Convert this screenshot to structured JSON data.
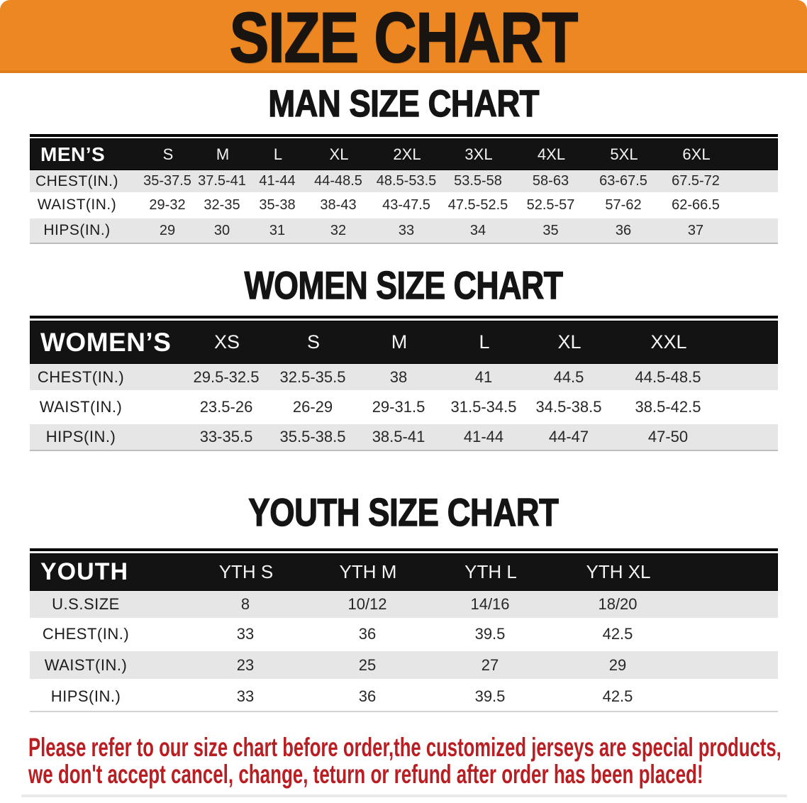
{
  "banner": {
    "title": "SIZE CHART"
  },
  "sections": {
    "men": {
      "heading": "MAN SIZE CHART",
      "table": {
        "header": [
          "MEN’S",
          "S",
          "M",
          "L",
          "XL",
          "2XL",
          "3XL",
          "4XL",
          "5XL",
          "6XL"
        ],
        "rows": [
          {
            "label": "CHEST(IN.)",
            "values": [
              "35-37.5",
              "37.5-41",
              "41-44",
              "44-48.5",
              "48.5-53.5",
              "53.5-58",
              "58-63",
              "63-67.5",
              "67.5-72"
            ]
          },
          {
            "label": "WAIST(IN.)",
            "values": [
              "29-32",
              "32-35",
              "35-38",
              "38-43",
              "43-47.5",
              "47.5-52.5",
              "52.5-57",
              "57-62",
              "62-66.5"
            ]
          },
          {
            "label": "HIPS(IN.)",
            "values": [
              "29",
              "30",
              "31",
              "32",
              "33",
              "34",
              "35",
              "36",
              "37"
            ]
          }
        ]
      }
    },
    "women": {
      "heading": "WOMEN SIZE CHART",
      "table": {
        "header": [
          "WOMEN’S",
          "XS",
          "S",
          "M",
          "L",
          "XL",
          "XXL"
        ],
        "rows": [
          {
            "label": "CHEST(IN.)",
            "values": [
              "29.5-32.5",
              "32.5-35.5",
              "38",
              "41",
              "44.5",
              "44.5-48.5"
            ]
          },
          {
            "label": "WAIST(IN.)",
            "values": [
              "23.5-26",
              "26-29",
              "29-31.5",
              "31.5-34.5",
              "34.5-38.5",
              "38.5-42.5"
            ]
          },
          {
            "label": "HIPS(IN.)",
            "values": [
              "33-35.5",
              "35.5-38.5",
              "38.5-41",
              "41-44",
              "44-47",
              "47-50"
            ]
          }
        ]
      }
    },
    "youth": {
      "heading": "YOUTH SIZE CHART",
      "table": {
        "header": [
          "YOUTH",
          "YTH S",
          "YTH M",
          "YTH L",
          "YTH XL"
        ],
        "rows": [
          {
            "label": "U.S.SIZE",
            "values": [
              "8",
              "10/12",
              "14/16",
              "18/20"
            ]
          },
          {
            "label": "CHEST(IN.)",
            "values": [
              "33",
              "36",
              "39.5",
              "42.5"
            ]
          },
          {
            "label": "WAIST(IN.)",
            "values": [
              "23",
              "25",
              "27",
              "29"
            ]
          },
          {
            "label": "HIPS(IN.)",
            "values": [
              "33",
              "36",
              "39.5",
              "42.5"
            ]
          }
        ]
      }
    }
  },
  "note": {
    "line1": "Please refer to our size chart before order,the customized jerseys are special products,",
    "line2": "we don't accept cancel, change, teturn or refund after order has been placed!"
  },
  "colors": {
    "banner_orange": "#ec8722",
    "header_black": "#121212",
    "stripe_gray": "#e6e6e6",
    "note_red": "#b91e23"
  }
}
